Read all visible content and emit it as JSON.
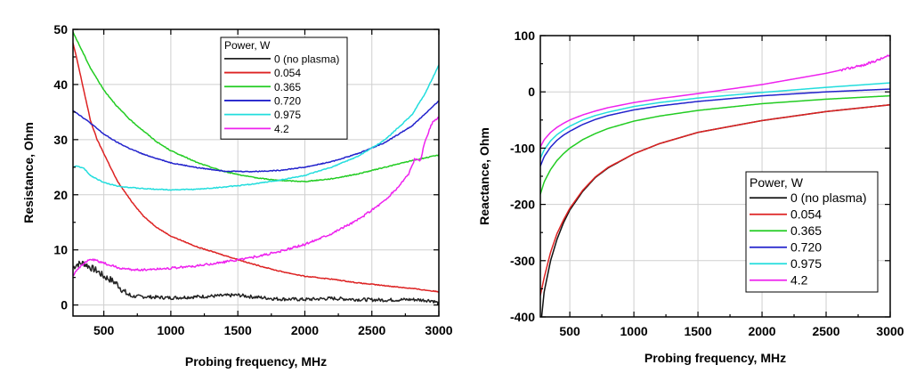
{
  "chart_data": [
    {
      "type": "line",
      "xlabel": "Probing frequency, MHz",
      "ylabel": "Resistance, Ohm",
      "xlim": [
        270,
        3000
      ],
      "ylim": [
        -2,
        50
      ],
      "xticks": [
        500,
        1000,
        1500,
        2000,
        2500,
        3000
      ],
      "yticks": [
        0,
        10,
        20,
        30,
        40,
        50
      ],
      "grid": true,
      "legend_position": "top-right",
      "legend_title": "Power, W",
      "series": [
        {
          "name": "0 (no plasma)",
          "color": "#222222",
          "noise": "strong",
          "x": [
            270,
            300,
            350,
            400,
            450,
            500,
            550,
            600,
            650,
            700,
            800,
            900,
            1000,
            1200,
            1400,
            1500,
            1600,
            1800,
            2000,
            2200,
            2400,
            2600,
            2800,
            2950,
            3000
          ],
          "y": [
            6.8,
            7.4,
            7.6,
            6.8,
            6.2,
            5.2,
            4.6,
            3.8,
            2.4,
            1.6,
            1.5,
            1.4,
            1.3,
            1.5,
            1.7,
            1.8,
            1.5,
            1.1,
            1.0,
            1.2,
            1.0,
            0.9,
            1.0,
            0.8,
            0.3
          ]
        },
        {
          "name": "0.054",
          "color": "#dd2222",
          "noise": "light",
          "x": [
            270,
            300,
            350,
            400,
            450,
            500,
            550,
            600,
            700,
            800,
            900,
            1000,
            1200,
            1400,
            1600,
            1800,
            2000,
            2200,
            2400,
            2600,
            2800,
            3000
          ],
          "y": [
            47.5,
            44.5,
            39.0,
            33.5,
            30.0,
            27.5,
            25.0,
            22.5,
            19.0,
            16.0,
            14.0,
            12.5,
            10.5,
            9.0,
            7.5,
            6.2,
            5.2,
            4.7,
            4.0,
            3.5,
            3.0,
            2.4
          ]
        },
        {
          "name": "0.365",
          "color": "#22cc22",
          "noise": "light",
          "x": [
            270,
            300,
            400,
            500,
            600,
            700,
            800,
            900,
            1000,
            1200,
            1400,
            1600,
            1800,
            2000,
            2200,
            2400,
            2600,
            2800,
            3000
          ],
          "y": [
            49.5,
            48.0,
            43.0,
            39.0,
            36.0,
            33.5,
            31.5,
            29.5,
            28.0,
            25.8,
            24.2,
            23.2,
            22.6,
            22.4,
            22.9,
            23.8,
            25.0,
            26.2,
            27.2
          ]
        },
        {
          "name": "0.720",
          "color": "#2222cc",
          "noise": "light",
          "x": [
            270,
            300,
            400,
            500,
            600,
            700,
            800,
            1000,
            1200,
            1400,
            1600,
            1800,
            2000,
            2200,
            2400,
            2600,
            2800,
            3000
          ],
          "y": [
            35.3,
            34.8,
            33.0,
            31.0,
            29.5,
            28.3,
            27.3,
            25.8,
            24.9,
            24.3,
            24.2,
            24.4,
            25.0,
            26.0,
            27.5,
            29.5,
            32.5,
            37.0
          ]
        },
        {
          "name": "0.975",
          "color": "#22dddd",
          "noise": "light",
          "x": [
            270,
            300,
            350,
            400,
            500,
            600,
            700,
            800,
            1000,
            1200,
            1400,
            1600,
            1800,
            2000,
            2200,
            2400,
            2600,
            2800,
            2900,
            3000
          ],
          "y": [
            25.0,
            25.2,
            24.8,
            23.5,
            22.2,
            21.6,
            21.3,
            21.1,
            20.9,
            21.0,
            21.4,
            21.9,
            22.6,
            23.5,
            25.0,
            27.0,
            30.0,
            34.5,
            38.5,
            43.5
          ]
        },
        {
          "name": "4.2",
          "color": "#ee22ee",
          "noise": "medium",
          "x": [
            270,
            300,
            350,
            400,
            450,
            500,
            600,
            700,
            800,
            1000,
            1200,
            1400,
            1600,
            1800,
            2000,
            2200,
            2400,
            2600,
            2700,
            2780,
            2820,
            2860,
            2900,
            2950,
            3000
          ],
          "y": [
            5.3,
            6.5,
            7.5,
            8.3,
            8.0,
            7.6,
            6.8,
            6.4,
            6.4,
            6.7,
            7.1,
            7.8,
            8.6,
            9.6,
            11.0,
            13.0,
            15.5,
            19.0,
            21.5,
            24.0,
            26.5,
            26.0,
            30.0,
            33.0,
            34.0
          ]
        }
      ]
    },
    {
      "type": "line",
      "xlabel": "Probing frequency, MHz",
      "ylabel": "Reactance, Ohm",
      "xlim": [
        270,
        3000
      ],
      "ylim": [
        -400,
        100
      ],
      "xticks": [
        500,
        1000,
        1500,
        2000,
        2500,
        3000
      ],
      "yticks": [
        -400,
        -300,
        -200,
        -100,
        0,
        100
      ],
      "grid": true,
      "legend_position": "bottom-right",
      "legend_title": "Power, W",
      "series": [
        {
          "name": "0 (no plasma)",
          "color": "#111111",
          "noise": "none",
          "x": [
            280,
            300,
            350,
            400,
            450,
            500,
            600,
            700,
            800,
            1000,
            1200,
            1500,
            2000,
            2500,
            3000
          ],
          "y": [
            -400,
            -355,
            -300,
            -262,
            -233,
            -210,
            -177,
            -152,
            -135,
            -110,
            -92,
            -72,
            -51,
            -35,
            -23
          ]
        },
        {
          "name": "0.054",
          "color": "#dd2222",
          "noise": "none",
          "x": [
            270,
            300,
            350,
            400,
            450,
            500,
            600,
            700,
            800,
            1000,
            1200,
            1500,
            2000,
            2500,
            3000
          ],
          "y": [
            -362,
            -330,
            -285,
            -252,
            -228,
            -207,
            -175,
            -151,
            -134,
            -110,
            -92,
            -72,
            -51,
            -35,
            -23
          ]
        },
        {
          "name": "0.365",
          "color": "#22cc22",
          "noise": "none",
          "x": [
            270,
            300,
            350,
            400,
            450,
            500,
            600,
            700,
            800,
            1000,
            1200,
            1500,
            2000,
            2500,
            3000
          ],
          "y": [
            -182,
            -160,
            -138,
            -122,
            -110,
            -100,
            -85,
            -74,
            -65,
            -52,
            -43,
            -33,
            -21,
            -13,
            -7
          ]
        },
        {
          "name": "0.720",
          "color": "#2222cc",
          "noise": "none",
          "x": [
            270,
            300,
            350,
            400,
            450,
            500,
            600,
            700,
            800,
            1000,
            1200,
            1500,
            2000,
            2500,
            3000
          ],
          "y": [
            -132,
            -115,
            -98,
            -86,
            -77,
            -70,
            -58,
            -49,
            -42,
            -32,
            -25,
            -17,
            -7,
            0,
            5
          ]
        },
        {
          "name": "0.975",
          "color": "#22dddd",
          "noise": "none",
          "x": [
            270,
            300,
            350,
            400,
            450,
            500,
            600,
            700,
            800,
            1000,
            1200,
            1500,
            2000,
            2500,
            3000
          ],
          "y": [
            -118,
            -103,
            -87,
            -76,
            -68,
            -61,
            -50,
            -42,
            -36,
            -26,
            -19,
            -11,
            -1,
            8,
            16
          ]
        },
        {
          "name": "4.2",
          "color": "#ee22ee",
          "noise": "tail",
          "x": [
            270,
            300,
            350,
            400,
            450,
            500,
            600,
            700,
            800,
            1000,
            1200,
            1500,
            2000,
            2500,
            2800,
            3000
          ],
          "y": [
            -98,
            -85,
            -72,
            -63,
            -56,
            -50,
            -41,
            -34,
            -28,
            -19,
            -12,
            -3,
            13,
            33,
            48,
            65
          ]
        }
      ]
    }
  ]
}
